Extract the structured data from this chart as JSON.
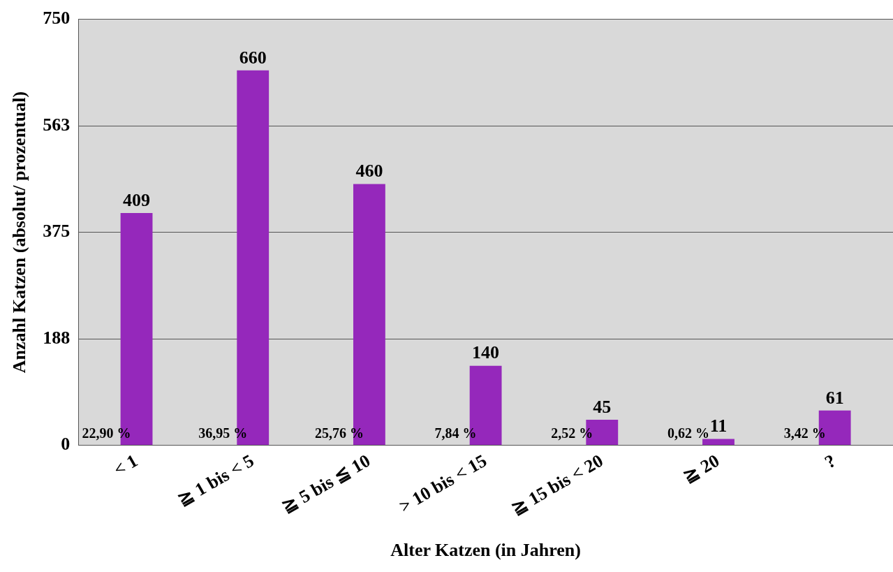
{
  "chart_data": {
    "type": "bar",
    "xlabel": "Alter Katzen (in Jahren)",
    "ylabel": "Anzahl Katzen (absolut/ prozentual)",
    "categories": [
      "< 1",
      "≧ 1 bis < 5",
      "≧ 5 bis ≦ 10",
      "> 10 bis < 15",
      "≧ 15 bis < 20",
      "≧ 20",
      "?"
    ],
    "series": [
      {
        "color": "#9528bb",
        "values": [
          409,
          660,
          460,
          140,
          45,
          11,
          61
        ]
      }
    ],
    "data_labels": true,
    "ylim": [
      0,
      750
    ],
    "yticks": [
      0,
      {
        "value": 187.5,
        "label": "188"
      },
      375,
      {
        "value": 562.5,
        "label": "563"
      },
      750
    ],
    "grid": "y",
    "legend": false,
    "annotations": [
      {
        "text": "22,90 %",
        "x": "< 1",
        "y": 0
      },
      {
        "text": "36,95 %",
        "x": "≧ 1 bis < 5",
        "y": 0
      },
      {
        "text": "25,76 %",
        "x": "≧ 5 bis ≦ 10",
        "y": 0
      },
      {
        "text": "7,84 %",
        "x": "> 10 bis < 15",
        "y": 0
      },
      {
        "text": "2,52 %",
        "x": "≧ 15 bis < 20",
        "y": 0
      },
      {
        "text": "0,62 %",
        "x": "≧ 20",
        "y": 0
      },
      {
        "text": "3,42 %",
        "x": "?",
        "y": 0
      }
    ]
  }
}
